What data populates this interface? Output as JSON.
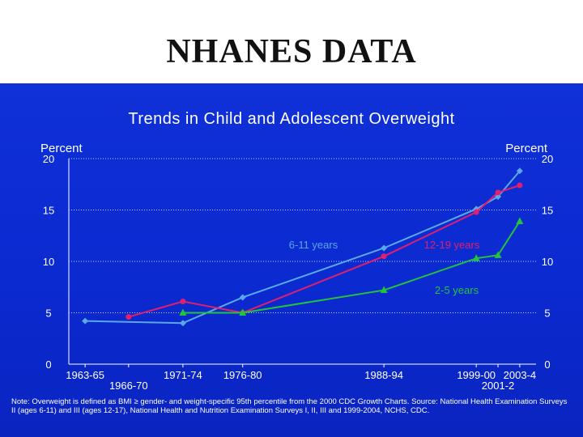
{
  "slide_title": "NHANES DATA",
  "chart_data": {
    "type": "line",
    "title": "Trends in Child and Adolescent Overweight",
    "ylabel_left": "Percent",
    "ylabel_right": "Percent",
    "ylim": [
      0,
      20
    ],
    "yticks": [
      0,
      5,
      10,
      15,
      20
    ],
    "grid": "dotted horizontal",
    "x_tick_labels": [
      {
        "label": "1963-65",
        "x": 1963.5
      },
      {
        "label": "1966-70",
        "x": 1967.5
      },
      {
        "label": "1971-74",
        "x": 1972.5
      },
      {
        "label": "1976-80",
        "x": 1978
      },
      {
        "label": "1988-94",
        "x": 1991
      },
      {
        "label": "1999-00",
        "x": 1999.5
      },
      {
        "label": "2001-2",
        "x": 2001.5
      },
      {
        "label": "2003-4",
        "x": 2003.5
      }
    ],
    "series": [
      {
        "name": "6-11 years",
        "color": "#5aa8e8",
        "marker": "diamond",
        "x": [
          1963.5,
          1967.5,
          1972.5,
          1978,
          1991,
          1999.5,
          2001.5,
          2003.5
        ],
        "y": [
          4.2,
          null,
          4.0,
          6.5,
          11.3,
          15.1,
          16.3,
          18.8
        ]
      },
      {
        "name": "12-19 years",
        "color": "#e0206e",
        "marker": "circle",
        "x": [
          1963.5,
          1967.5,
          1972.5,
          1978,
          1991,
          1999.5,
          2001.5,
          2003.5
        ],
        "y": [
          null,
          4.6,
          6.1,
          5.0,
          10.5,
          14.8,
          16.7,
          17.4
        ]
      },
      {
        "name": "2-5 years",
        "color": "#22c43a",
        "marker": "triangle",
        "x": [
          1963.5,
          1967.5,
          1972.5,
          1978,
          1991,
          1999.5,
          2001.5,
          2003.5
        ],
        "y": [
          null,
          null,
          5.0,
          5.0,
          7.2,
          10.3,
          10.6,
          13.9
        ]
      }
    ]
  },
  "footnote": "Note: Overweight is defined as BMI ≥ gender- and weight-specific 95th percentile from the 2000 CDC Growth Charts. Source: National Health Examination Surveys II (ages 6-11) and III (ages 12-17), National Health and Nutrition Examination Surveys I, II, III and 1999-2004, NCHS, CDC."
}
